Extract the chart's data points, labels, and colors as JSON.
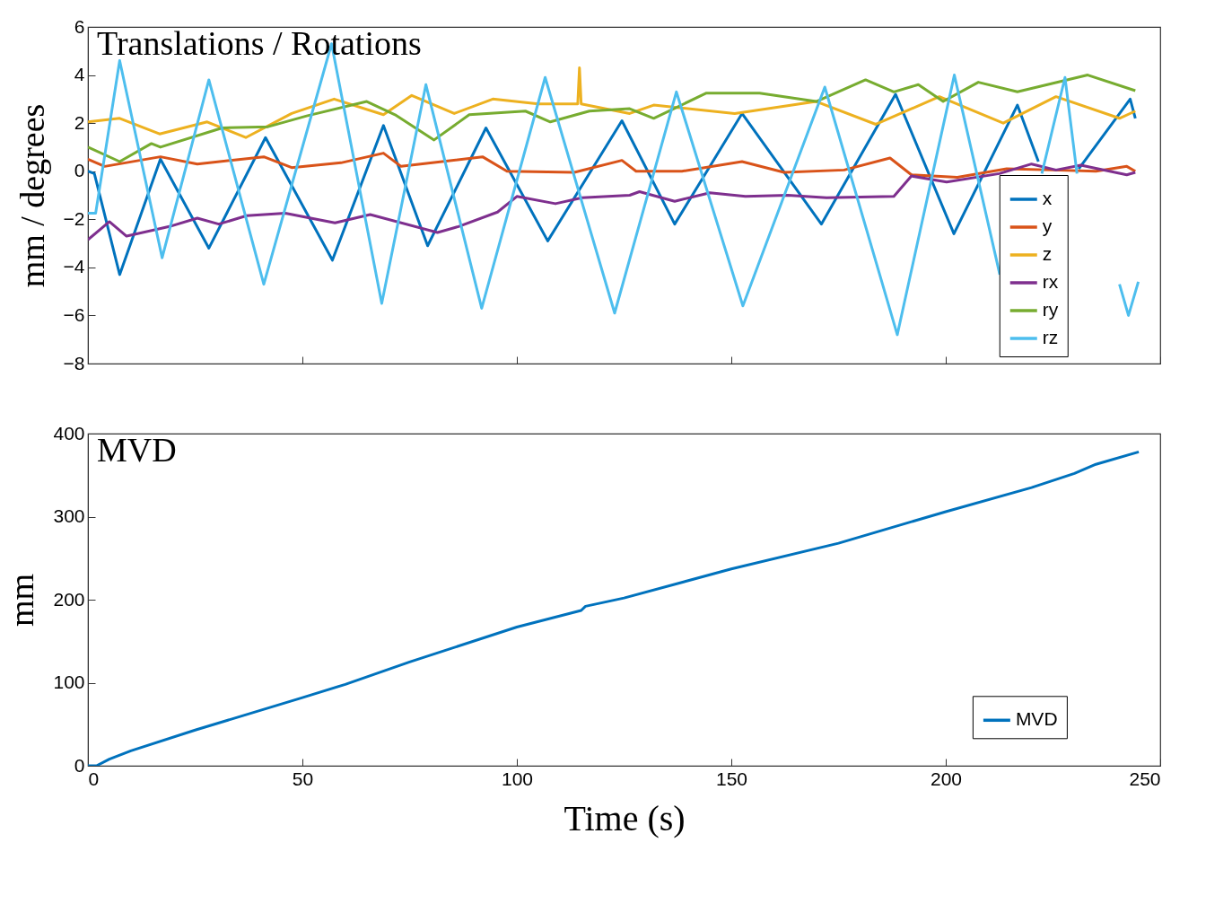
{
  "chart_data": [
    {
      "type": "line",
      "title": "Translations / Rotations",
      "ylabel": "mm / degrees",
      "xlim": [
        0,
        250
      ],
      "xticks": [
        0,
        50,
        100,
        150,
        200,
        250
      ],
      "ylim": [
        -8,
        6
      ],
      "yticks": [
        -8,
        -6,
        -4,
        -2,
        0,
        2,
        4,
        6
      ],
      "tick_labels": "y",
      "legend": "right",
      "series": [
        {
          "name": "x",
          "color": "#0072bd",
          "x": [
            0,
            1.5,
            7.4,
            16.9,
            28.2,
            41.4,
            57,
            68.9,
            79.2,
            92.8,
            107.2,
            124.5,
            136.8,
            152.5,
            171,
            188.3,
            201.9,
            216.7,
            221.6,
            226,
            231,
            243,
            244.2
          ],
          "values": [
            0,
            -0.1,
            -4.3,
            0.5,
            -3.2,
            1.4,
            -3.7,
            1.9,
            -3.1,
            1.8,
            -2.9,
            2.1,
            -2.2,
            2.4,
            -2.2,
            3.2,
            -2.6,
            2.75,
            0.4,
            null,
            0.1,
            3.0,
            2.2
          ]
        },
        {
          "name": "y",
          "color": "#d95319",
          "x": [
            0,
            3.9,
            16.9,
            25.5,
            41,
            47.5,
            59,
            68.9,
            73,
            92,
            97.7,
            113.4,
            124.5,
            127.8,
            138.5,
            152.5,
            162.3,
            176.3,
            187,
            192,
            202.7,
            214.2,
            225,
            235,
            242.2,
            244.2
          ],
          "values": [
            0.5,
            0.2,
            0.6,
            0.3,
            0.6,
            0.15,
            0.35,
            0.75,
            0.2,
            0.6,
            0,
            -0.05,
            0.45,
            0,
            0,
            0.4,
            -0.05,
            0.05,
            0.55,
            -0.15,
            -0.25,
            0.1,
            0.05,
            0,
            0.2,
            0
          ]
        },
        {
          "name": "z",
          "color": "#edb120",
          "x": [
            0,
            7.4,
            16.7,
            27.8,
            36.8,
            47.5,
            57.4,
            68.9,
            75.5,
            85.4,
            94.4,
            105,
            114.2,
            114.6,
            115,
            126.3,
            131.9,
            150.8,
            169.8,
            183.7,
            198.5,
            213.4,
            225.7,
            240.5,
            244.2
          ],
          "values": [
            2.05,
            2.2,
            1.55,
            2.05,
            1.4,
            2.4,
            3,
            2.35,
            3.15,
            2.4,
            3,
            2.8,
            2.8,
            4.3,
            2.8,
            2.4,
            2.75,
            2.4,
            2.9,
            1.95,
            3.1,
            2,
            3.1,
            2.2,
            2.5
          ]
        },
        {
          "name": "rx",
          "color": "#7e2f8e",
          "x": [
            0,
            5,
            9,
            19,
            25.5,
            30.5,
            37,
            46,
            57.6,
            65.8,
            81.5,
            86.4,
            95.5,
            100,
            109,
            115.2,
            126.3,
            128.6,
            136.8,
            145,
            153.3,
            163.2,
            172.2,
            187.9,
            192,
            200.2,
            212.5,
            220,
            225.7,
            231.5,
            242.2,
            244.2
          ],
          "values": [
            -2.85,
            -2.1,
            -2.7,
            -2.3,
            -1.95,
            -2.2,
            -1.85,
            -1.75,
            -2.15,
            -1.8,
            -2.55,
            -2.3,
            -1.7,
            -1.05,
            -1.35,
            -1.1,
            -1,
            -0.85,
            -1.25,
            -0.9,
            -1.05,
            -1,
            -1.1,
            -1.05,
            -0.2,
            -0.45,
            -0.1,
            0.3,
            0.05,
            0.25,
            -0.15,
            -0.05
          ]
        },
        {
          "name": "ry",
          "color": "#77ac30",
          "x": [
            0,
            7.4,
            14.8,
            16.9,
            31.3,
            42,
            51,
            65,
            71.6,
            80.7,
            88.9,
            102,
            107.8,
            116.9,
            126.3,
            131.9,
            144.2,
            156.6,
            169.8,
            181.3,
            187.9,
            193.6,
            199.4,
            207.6,
            216.7,
            233.1,
            244.2
          ],
          "values": [
            1,
            0.4,
            1.15,
            1,
            1.8,
            1.85,
            2.3,
            2.9,
            2.35,
            1.3,
            2.35,
            2.5,
            2.05,
            2.5,
            2.6,
            2.2,
            3.25,
            3.25,
            2.9,
            3.8,
            3.3,
            3.6,
            2.9,
            3.7,
            3.3,
            4,
            3.35
          ]
        },
        {
          "name": "rz",
          "color": "#4dbeee",
          "x": [
            0,
            1.8,
            7.4,
            17.3,
            28.2,
            41,
            56.8,
            68.5,
            78.8,
            91.8,
            106.6,
            122.8,
            137.2,
            152.7,
            171.8,
            188.7,
            202,
            212.6,
            217,
            222.4,
            227.8,
            230.6,
            235,
            240.5,
            242.6,
            244.9
          ],
          "values": [
            -1.75,
            -1.75,
            4.6,
            -3.6,
            3.8,
            -4.7,
            5.3,
            -5.5,
            3.6,
            -5.7,
            3.9,
            -5.9,
            3.3,
            -5.6,
            3.5,
            -6.8,
            4,
            -4.3,
            null,
            -0.1,
            3.9,
            -0.1,
            null,
            -4.7,
            -6,
            -4.6
          ]
        }
      ]
    },
    {
      "type": "line",
      "title": "MVD",
      "xlabel": "Time (s)",
      "ylabel": "mm",
      "xlim": [
        0,
        250
      ],
      "xticks": [
        0,
        50,
        100,
        150,
        200,
        250
      ],
      "ylim": [
        0,
        400
      ],
      "yticks": [
        0,
        100,
        200,
        300,
        400
      ],
      "legend": "bottom right",
      "series": [
        {
          "name": "MVD",
          "color": "#0072bd",
          "x": [
            0,
            2,
            5,
            10,
            25,
            50,
            60,
            75,
            100,
            115,
            116,
            125,
            150,
            175,
            200,
            220,
            230,
            235,
            245
          ],
          "values": [
            0,
            0,
            8,
            18,
            43,
            82,
            98,
            125,
            167,
            187,
            192,
            202,
            237,
            268,
            306,
            335,
            352,
            363,
            378
          ]
        }
      ]
    }
  ]
}
